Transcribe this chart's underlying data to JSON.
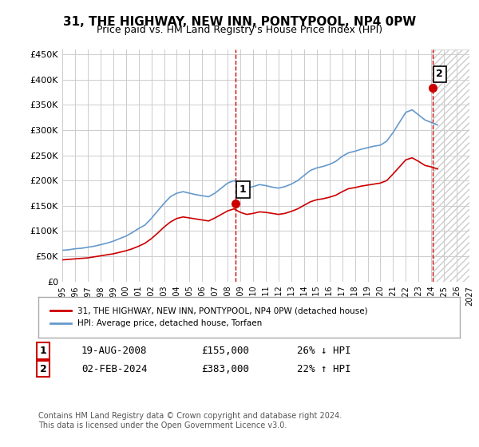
{
  "title": "31, THE HIGHWAY, NEW INN, PONTYPOOL, NP4 0PW",
  "subtitle": "Price paid vs. HM Land Registry's House Price Index (HPI)",
  "ylabel_ticks": [
    "£0",
    "£50K",
    "£100K",
    "£150K",
    "£200K",
    "£250K",
    "£300K",
    "£350K",
    "£400K",
    "£450K"
  ],
  "ytick_vals": [
    0,
    50000,
    100000,
    150000,
    200000,
    250000,
    300000,
    350000,
    400000,
    450000
  ],
  "ylim": [
    0,
    460000
  ],
  "xlim_start": 1995,
  "xlim_end": 2027,
  "hpi_color": "#6699cc",
  "price_color": "#cc0000",
  "marker1_date": 2008.63,
  "marker1_price": 155000,
  "marker2_date": 2024.09,
  "marker2_price": 383000,
  "legend_label1": "31, THE HIGHWAY, NEW INN, PONTYPOOL, NP4 0PW (detached house)",
  "legend_label2": "HPI: Average price, detached house, Torfaen",
  "table_row1": [
    "1",
    "19-AUG-2008",
    "£155,000",
    "26% ↓ HPI"
  ],
  "table_row2": [
    "2",
    "02-FEB-2024",
    "£383,000",
    "22% ↑ HPI"
  ],
  "footer": "Contains HM Land Registry data © Crown copyright and database right 2024.\nThis data is licensed under the Open Government Licence v3.0.",
  "background_color": "#ffffff",
  "grid_color": "#cccccc",
  "hpi_years": [
    1995.0,
    1995.5,
    1996.0,
    1996.5,
    1997.0,
    1997.5,
    1998.0,
    1998.5,
    1999.0,
    1999.5,
    2000.0,
    2000.5,
    2001.0,
    2001.5,
    2002.0,
    2002.5,
    2003.0,
    2003.5,
    2004.0,
    2004.5,
    2005.0,
    2005.5,
    2006.0,
    2006.5,
    2007.0,
    2007.5,
    2008.0,
    2008.5,
    2009.0,
    2009.5,
    2010.0,
    2010.5,
    2011.0,
    2011.5,
    2012.0,
    2012.5,
    2013.0,
    2013.5,
    2014.0,
    2014.5,
    2015.0,
    2015.5,
    2016.0,
    2016.5,
    2017.0,
    2017.5,
    2018.0,
    2018.5,
    2019.0,
    2019.5,
    2020.0,
    2020.5,
    2021.0,
    2021.5,
    2022.0,
    2022.5,
    2023.0,
    2023.5,
    2024.0,
    2024.5
  ],
  "hpi_vals": [
    62000,
    63000,
    65000,
    66000,
    68000,
    70000,
    73000,
    76000,
    80000,
    85000,
    90000,
    97000,
    105000,
    112000,
    125000,
    140000,
    155000,
    168000,
    175000,
    178000,
    175000,
    172000,
    170000,
    168000,
    175000,
    185000,
    195000,
    200000,
    190000,
    185000,
    188000,
    192000,
    190000,
    187000,
    185000,
    188000,
    193000,
    200000,
    210000,
    220000,
    225000,
    228000,
    232000,
    238000,
    248000,
    255000,
    258000,
    262000,
    265000,
    268000,
    270000,
    278000,
    295000,
    315000,
    335000,
    340000,
    330000,
    320000,
    315000,
    310000
  ],
  "price_years": [
    1995.0,
    1995.5,
    1996.0,
    1996.5,
    1997.0,
    1997.5,
    1998.0,
    1998.5,
    1999.0,
    1999.5,
    2000.0,
    2000.5,
    2001.0,
    2001.5,
    2002.0,
    2002.5,
    2003.0,
    2003.5,
    2004.0,
    2004.5,
    2005.0,
    2005.5,
    2006.0,
    2006.5,
    2007.0,
    2007.5,
    2008.0,
    2008.5,
    2009.0,
    2009.5,
    2010.0,
    2010.5,
    2011.0,
    2011.5,
    2012.0,
    2012.5,
    2013.0,
    2013.5,
    2014.0,
    2014.5,
    2015.0,
    2015.5,
    2016.0,
    2016.5,
    2017.0,
    2017.5,
    2018.0,
    2018.5,
    2019.0,
    2019.5,
    2020.0,
    2020.5,
    2021.0,
    2021.5,
    2022.0,
    2022.5,
    2023.0,
    2023.5,
    2024.0,
    2024.5
  ],
  "price_vals": [
    43000,
    44000,
    45000,
    46000,
    47000,
    49000,
    51000,
    53000,
    55000,
    58000,
    61000,
    65000,
    70000,
    76000,
    85000,
    96000,
    108000,
    118000,
    125000,
    128000,
    126000,
    124000,
    122000,
    120000,
    126000,
    133000,
    140000,
    144000,
    137000,
    133000,
    135000,
    138000,
    137000,
    135000,
    133000,
    135000,
    139000,
    144000,
    151000,
    158000,
    162000,
    164000,
    167000,
    171000,
    178000,
    184000,
    186000,
    189000,
    191000,
    193000,
    195000,
    200000,
    213000,
    227000,
    241000,
    245000,
    238000,
    230000,
    227000,
    223000
  ]
}
